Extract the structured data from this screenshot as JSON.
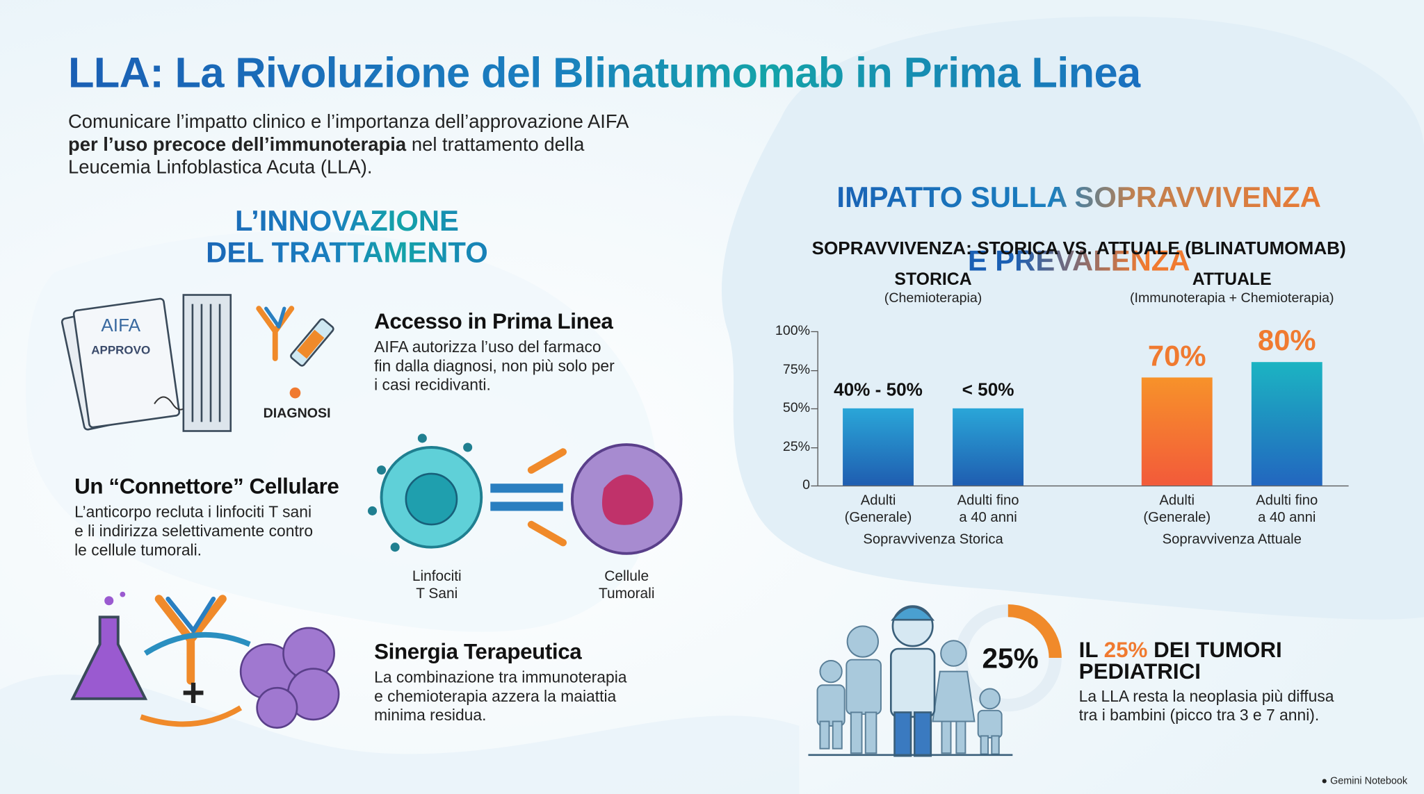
{
  "header": {
    "title": "LLA: La Rivoluzione del Blinatumomab in Prima Linea",
    "intro": [
      "Comunicare l’impatto clinico e l’importanza dell’approvazione AIFA\n",
      "per l’uso precoce dell’immunoterapia",
      " nel trattamento della\nLeucemia Linfoblastica Acuta (LLA)."
    ]
  },
  "innovation": {
    "heading": "L’INNOVAZIONE\nDEL TRATTAMENTO",
    "icon_labels": {
      "aifa": "AIFA",
      "approvo": "APPROVO",
      "diagnosi": "DIAGNOSI",
      "t_cells": "Linfociti\nT Sani",
      "tumor_cells": "Cellule\nTumorali"
    },
    "items": [
      {
        "title": "Accesso in Prima Linea",
        "text": "AIFA autorizza l’uso del farmaco\nfin dalla diagnosi, non più solo per\ni casi recidivanti."
      },
      {
        "title": "Un “Connettore” Cellulare",
        "text": "L’anticorpo recluta i linfociti T sani\ne li indirizza selettivamente contro\nle cellule tumorali."
      },
      {
        "title": "Sinergia Terapeutica",
        "text": "La combinazione tra immunoterapia\ne chemioterapia azzera la maiattia\nminima residua."
      }
    ]
  },
  "impact": {
    "heading": [
      "IMPATTO SULLA SOPRAVVIVENZA",
      "E PREVALENZA"
    ]
  },
  "chart_data": {
    "type": "bar",
    "title": "SOPRAVVIVENZA: STORICA VS. ATTUALE (BLINATUMOMAB)",
    "ylim": [
      0,
      100
    ],
    "yticks": [
      0,
      {
        "value": 25,
        "label": "25%"
      },
      {
        "value": 50,
        "label": "50%"
      },
      {
        "value": 75,
        "label": "75%"
      },
      {
        "value": 100,
        "label": "100%"
      }
    ],
    "groups": [
      {
        "title": "STORICA",
        "subtitle": "(Chemioterapia)",
        "label": "Sopravvivenza Storica",
        "categories": [
          "Adulti\n(Generale)",
          "Adulti fino\na 40 anni"
        ],
        "values": [
          50,
          50
        ],
        "value_labels": [
          "40% - 50%",
          "< 50%"
        ],
        "label_color": "#111111",
        "colors": [
          [
            "#2aa6d8",
            "#1f5db0"
          ],
          [
            "#2aa6d8",
            "#1f5db0"
          ]
        ]
      },
      {
        "title": "ATTUALE",
        "subtitle": "(Immunoterapia + Chemioterapia)",
        "label": "Sopravvivenza Attuale",
        "categories": [
          "Adulti\n(Generale)",
          "Adulti fino\na 40 anni"
        ],
        "values": [
          70,
          80
        ],
        "value_labels": [
          "70%",
          "80%"
        ],
        "label_color": "#f07a30",
        "colors": [
          [
            "#f7922a",
            "#f25a3a"
          ],
          [
            "#1cb4c2",
            "#2266bf"
          ]
        ]
      }
    ]
  },
  "pediatric": {
    "value": 25,
    "value_label": "25%",
    "heading": [
      "IL ",
      " DEI TUMORI\nPEDIATRICI"
    ],
    "text": "La LLA resta la neoplasia più diffusa\ntra i bambini (picco tra 3 e 7 anni)."
  },
  "footer": "Gemini Notebook"
}
